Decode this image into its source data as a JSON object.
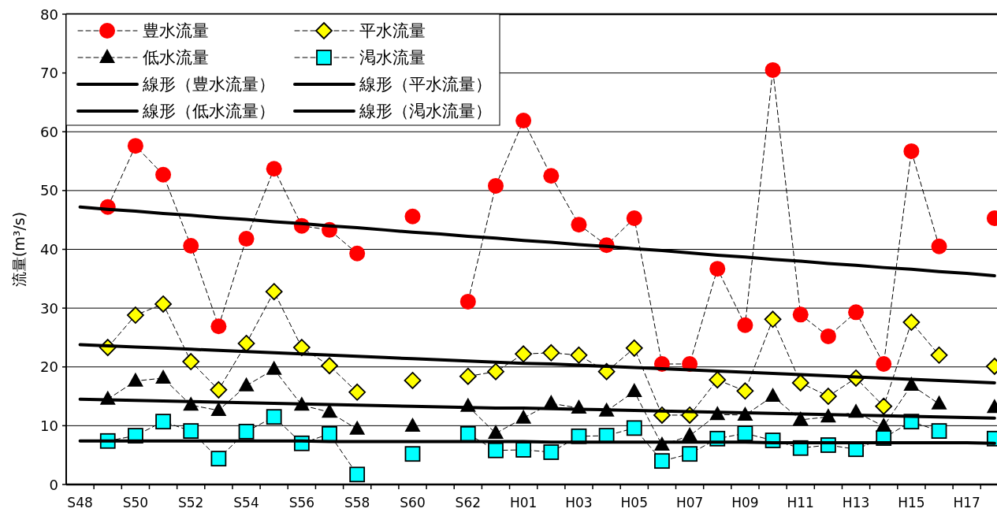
{
  "chart_data": {
    "type": "line",
    "ylabel": "流量(m³/s)",
    "categories": [
      "S48",
      null,
      "S50",
      null,
      "S52",
      null,
      "S54",
      null,
      "S56",
      null,
      "S58",
      null,
      "S60",
      null,
      "S62",
      null,
      "H01",
      null,
      "H03",
      null,
      "H05",
      null,
      "H07",
      null,
      "H09",
      null,
      "H11",
      null,
      "H13",
      null,
      "H15",
      null,
      "H17",
      null
    ],
    "ylim": [
      0,
      80
    ],
    "yticks": [
      0,
      10,
      20,
      30,
      40,
      50,
      60,
      70,
      80
    ],
    "grid": "y",
    "legend": "top left",
    "series": [
      {
        "name": "豊水流量",
        "type": "line",
        "color": "#ff0000",
        "marker": "circle",
        "line_style": "dashed",
        "values": [
          null,
          47.2,
          57.6,
          52.7,
          40.6,
          26.9,
          41.8,
          53.7,
          44.0,
          43.3,
          39.3,
          null,
          45.6,
          null,
          31.1,
          50.8,
          61.9,
          52.5,
          44.2,
          40.7,
          45.3,
          20.5,
          20.5,
          36.7,
          27.1,
          70.5,
          28.9,
          25.2,
          29.3,
          20.5,
          56.7,
          40.5,
          null,
          45.3
        ]
      },
      {
        "name": "平水流量",
        "type": "line",
        "color": "#ffff00",
        "marker": "diamond",
        "line_style": "dashed",
        "values": [
          null,
          23.3,
          28.8,
          30.7,
          20.9,
          16.1,
          24.0,
          32.8,
          23.3,
          20.2,
          15.7,
          null,
          17.7,
          null,
          18.4,
          19.2,
          22.2,
          22.4,
          22.0,
          19.2,
          23.2,
          11.8,
          11.8,
          17.8,
          15.9,
          28.1,
          17.3,
          15.0,
          18.1,
          13.3,
          27.6,
          22.0,
          null,
          20.1
        ]
      },
      {
        "name": "低水流量",
        "type": "line",
        "color": "#000000",
        "marker": "triangle",
        "line_style": "dashed",
        "values": [
          null,
          14.5,
          17.6,
          18.1,
          13.5,
          12.6,
          16.8,
          19.6,
          13.5,
          12.3,
          9.4,
          null,
          9.9,
          null,
          13.3,
          8.7,
          11.3,
          13.8,
          13.0,
          12.5,
          15.8,
          6.7,
          8.3,
          11.9,
          11.8,
          15.0,
          11.0,
          11.5,
          12.3,
          9.9,
          16.9,
          13.7,
          null,
          13.1
        ]
      },
      {
        "name": "渇水流量",
        "type": "line",
        "color": "#00ffff",
        "marker": "square",
        "line_style": "dashed",
        "values": [
          null,
          7.4,
          8.3,
          10.7,
          9.1,
          4.4,
          9.0,
          11.5,
          7.0,
          8.6,
          1.7,
          null,
          5.2,
          null,
          8.6,
          5.8,
          5.9,
          5.5,
          8.2,
          8.3,
          9.6,
          4.0,
          5.2,
          7.8,
          8.7,
          7.5,
          6.2,
          6.7,
          6.0,
          7.9,
          10.7,
          9.1,
          null,
          7.8
        ]
      },
      {
        "name": "線形（豊水流量）",
        "type": "line",
        "color": "#000000",
        "marker": "none",
        "line_style": "solid",
        "values": [
          47.2,
          46.8,
          46.5,
          46.1,
          45.8,
          45.4,
          45.1,
          44.7,
          44.4,
          44.0,
          43.7,
          43.3,
          42.9,
          42.6,
          42.2,
          41.9,
          41.5,
          41.2,
          40.8,
          40.5,
          40.1,
          39.8,
          39.4,
          39.0,
          38.7,
          38.3,
          38.0,
          37.6,
          37.3,
          36.9,
          36.6,
          36.2,
          35.9,
          35.5
        ]
      },
      {
        "name": "線形（平水流量）",
        "type": "line",
        "color": "#000000",
        "marker": "none",
        "line_style": "solid",
        "values": [
          23.8,
          23.6,
          23.4,
          23.2,
          23.0,
          22.8,
          22.6,
          22.4,
          22.2,
          22.0,
          21.8,
          21.6,
          21.4,
          21.2,
          21.0,
          20.8,
          20.6,
          20.5,
          20.3,
          20.1,
          19.9,
          19.7,
          19.5,
          19.3,
          19.1,
          18.9,
          18.7,
          18.5,
          18.3,
          18.1,
          17.9,
          17.7,
          17.5,
          17.3
        ]
      },
      {
        "name": "線形（低水流量）",
        "type": "line",
        "color": "#000000",
        "marker": "none",
        "line_style": "solid",
        "values": [
          14.5,
          14.4,
          14.3,
          14.2,
          14.1,
          14.0,
          13.9,
          13.8,
          13.7,
          13.6,
          13.5,
          13.4,
          13.3,
          13.2,
          13.1,
          13.0,
          13.0,
          12.9,
          12.8,
          12.7,
          12.6,
          12.5,
          12.4,
          12.3,
          12.2,
          12.1,
          12.0,
          11.9,
          11.8,
          11.7,
          11.6,
          11.5,
          11.4,
          11.3
        ]
      },
      {
        "name": "線形（渇水流量）",
        "type": "line",
        "color": "#000000",
        "marker": "none",
        "line_style": "solid",
        "values": [
          7.4,
          7.4,
          7.4,
          7.4,
          7.4,
          7.4,
          7.4,
          7.4,
          7.4,
          7.3,
          7.3,
          7.3,
          7.3,
          7.3,
          7.3,
          7.3,
          7.3,
          7.2,
          7.2,
          7.2,
          7.2,
          7.2,
          7.2,
          7.2,
          7.2,
          7.1,
          7.1,
          7.1,
          7.1,
          7.1,
          7.1,
          7.1,
          7.1,
          7.0
        ]
      }
    ]
  }
}
